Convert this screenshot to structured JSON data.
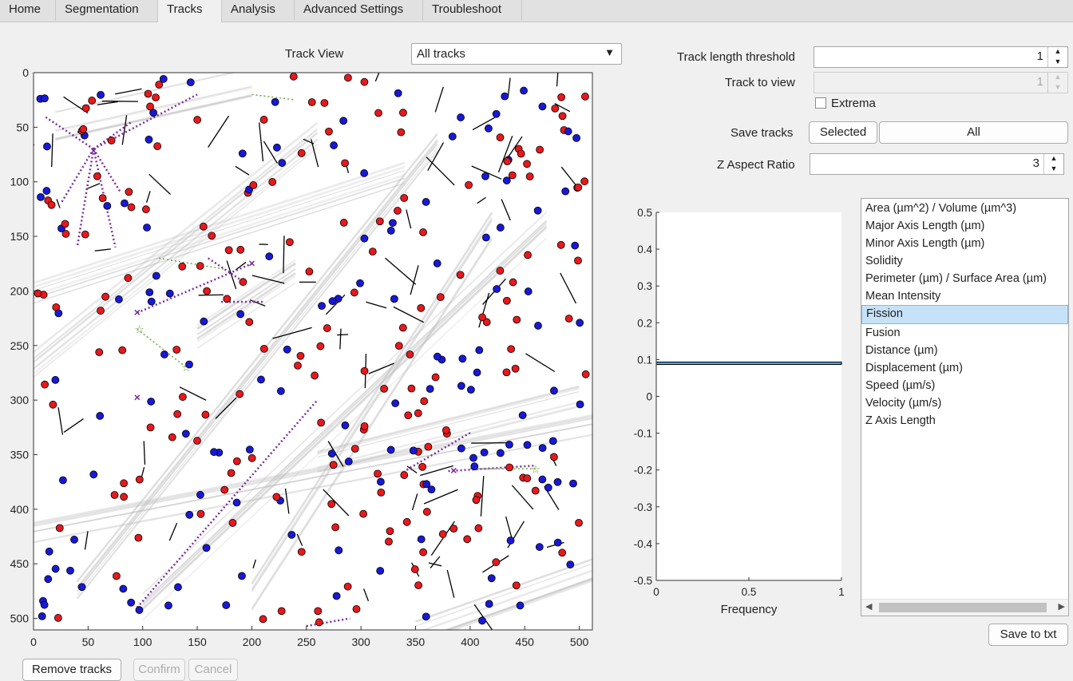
{
  "tabs": [
    "Home",
    "Segmentation",
    "Tracks",
    "Analysis",
    "Advanced Settings",
    "Troubleshoot"
  ],
  "active_tab": "Tracks",
  "track_view": {
    "label": "Track View",
    "value": "All tracks"
  },
  "controls": {
    "threshold_label": "Track length threshold",
    "threshold_value": "1",
    "track_to_view_label": "Track to view",
    "track_to_view_value": "1",
    "extrema_label": "Extrema",
    "save_tracks_label": "Save tracks",
    "selected_button": "Selected",
    "all_button": "All",
    "z_aspect_label": "Z Aspect Ratio",
    "z_aspect_value": "3"
  },
  "image_axes": {
    "xticks": [
      "0",
      "50",
      "100",
      "150",
      "200",
      "250",
      "300",
      "350",
      "400",
      "450",
      "500"
    ],
    "yticks": [
      "0",
      "50",
      "100",
      "150",
      "200",
      "250",
      "300",
      "350",
      "400",
      "450",
      "500"
    ]
  },
  "chart_data": {
    "type": "bar",
    "orientation": "horizontal",
    "xlabel": "Frequency",
    "ylabel": "",
    "xlim": [
      0,
      1
    ],
    "ylim": [
      -0.5,
      0.5
    ],
    "xticks": [
      "0",
      "0.5",
      "1"
    ],
    "yticks": [
      "0.5",
      "0.4",
      "0.3",
      "0.2",
      "0.1",
      "0",
      "-0.1",
      "-0.2",
      "-0.3",
      "-0.4",
      "-0.5"
    ],
    "bars": [
      {
        "y": 0.09,
        "value": 1
      }
    ]
  },
  "metrics": [
    "Area (µm^2) / Volume (µm^3)",
    "Major Axis Length (µm)",
    "Minor Axis Length (µm)",
    "Solidity",
    "Perimeter (µm) / Surface Area (µm)",
    "Mean Intensity",
    "Fission",
    "Fusion",
    "Distance (µm)",
    "Displacement (µm)",
    "Speed (µm/s)",
    "Velocity (µm/s)",
    "Z Axis Length"
  ],
  "selected_metric": "Fission",
  "buttons": {
    "save_txt": "Save to txt",
    "remove_tracks": "Remove tracks",
    "confirm": "Confirm",
    "cancel": "Cancel"
  }
}
